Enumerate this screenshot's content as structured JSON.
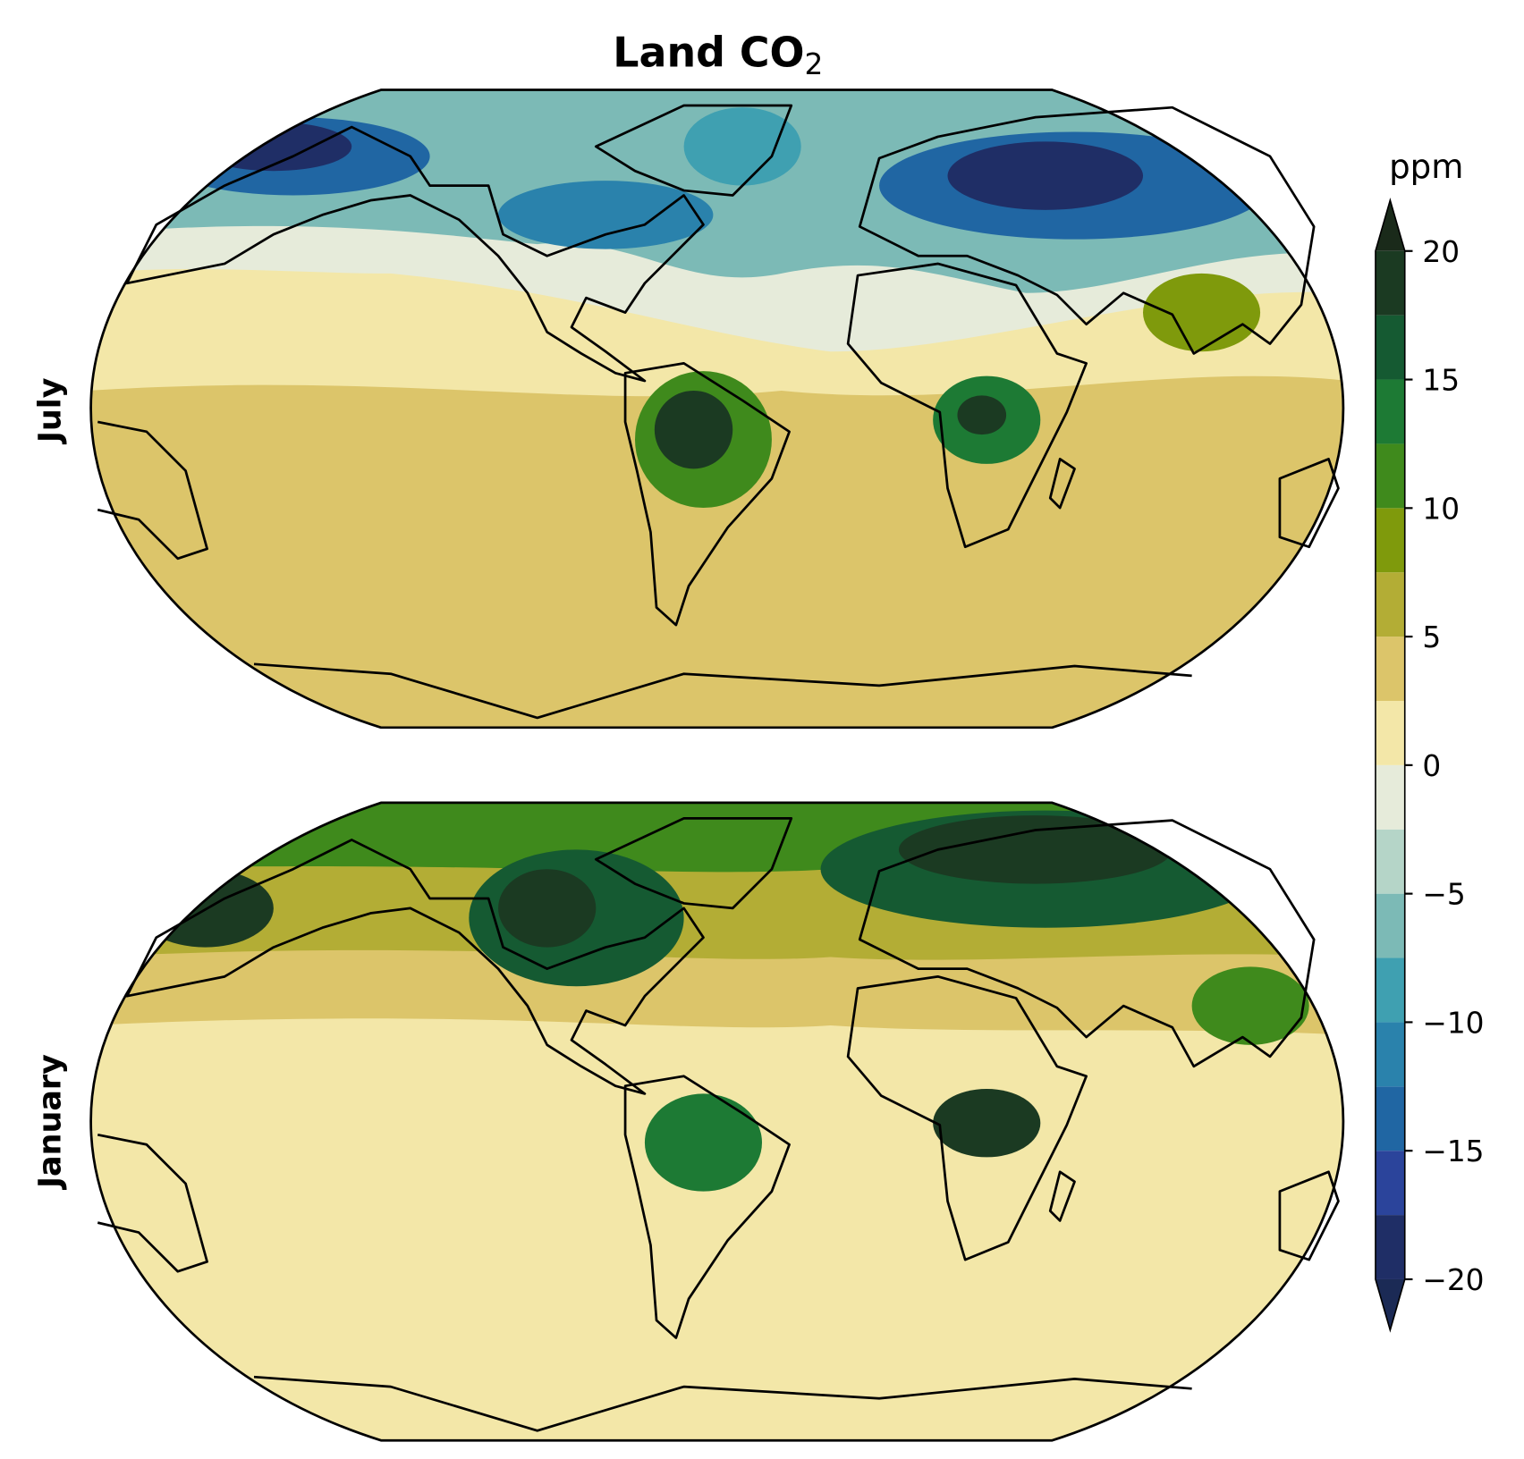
{
  "title": "Land CO",
  "title_subscript": "2",
  "panels": [
    {
      "label": "July"
    },
    {
      "label": "January"
    }
  ],
  "colorbar": {
    "label": "ppm",
    "lim": [
      -20,
      20
    ],
    "levels": [
      -20,
      -17.5,
      -15,
      -12.5,
      -10,
      -7.5,
      -5,
      -2.5,
      0,
      2.5,
      5,
      7.5,
      10,
      12.5,
      15,
      17.5,
      20
    ],
    "colors": [
      "#1f2e66",
      "#2b449b",
      "#2066a3",
      "#2a82ac",
      "#3fa0b1",
      "#7cbab6",
      "#b5d5c8",
      "#e6ebda",
      "#f3e7a8",
      "#dcc56a",
      "#b3ad35",
      "#7f9a0c",
      "#3f8a1c",
      "#1d7a34",
      "#155a32",
      "#1b3a22"
    ],
    "under_color": "#1b2a55",
    "over_color": "#1a2a1a",
    "ticks": [
      {
        "value": -20,
        "label": "−20"
      },
      {
        "value": -15,
        "label": "−15"
      },
      {
        "value": -10,
        "label": "−10"
      },
      {
        "value": -5,
        "label": "−5"
      },
      0,
      5,
      10,
      15,
      20
    ]
  }
}
